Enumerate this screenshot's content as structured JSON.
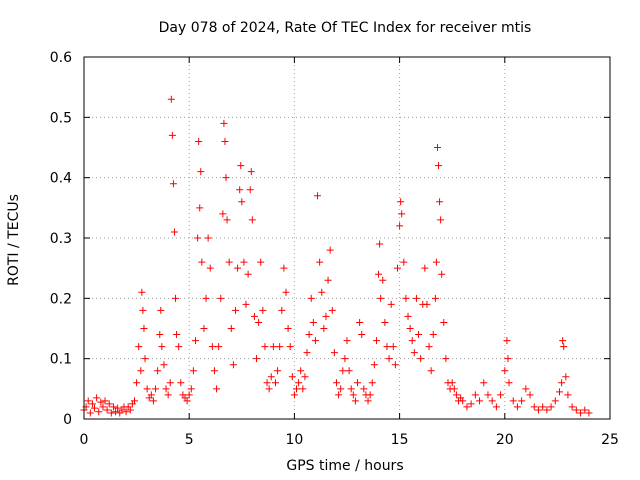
{
  "chart_data": {
    "type": "scatter",
    "title": "Day 078 of 2024, Rate Of TEC Index for receiver mtis",
    "xlabel": "GPS time / hours",
    "ylabel": "ROTI / TECUs",
    "xlim": [
      0,
      25
    ],
    "ylim": [
      0,
      0.6
    ],
    "xticks": [
      0,
      5,
      10,
      15,
      20,
      25
    ],
    "xtick_labels": [
      "0",
      "5",
      "10",
      "15",
      "20",
      "25"
    ],
    "yticks": [
      0,
      0.1,
      0.2,
      0.3,
      0.4,
      0.5,
      0.6
    ],
    "ytick_labels": [
      "0",
      "0.1",
      "0.2",
      "0.3",
      "0.4",
      "0.5",
      "0.6"
    ],
    "grid": true,
    "marker": "+",
    "color": "#ff0000",
    "series": [
      {
        "name": "ROTI",
        "points": [
          [
            0.0,
            0.015
          ],
          [
            0.1,
            0.02
          ],
          [
            0.2,
            0.03
          ],
          [
            0.3,
            0.01
          ],
          [
            0.4,
            0.025
          ],
          [
            0.5,
            0.018
          ],
          [
            0.6,
            0.035
          ],
          [
            0.7,
            0.012
          ],
          [
            0.8,
            0.028
          ],
          [
            0.9,
            0.02
          ],
          [
            1.0,
            0.03
          ],
          [
            1.1,
            0.015
          ],
          [
            1.2,
            0.025
          ],
          [
            1.3,
            0.01
          ],
          [
            1.4,
            0.02
          ],
          [
            1.5,
            0.012
          ],
          [
            1.6,
            0.018
          ],
          [
            1.7,
            0.01
          ],
          [
            1.8,
            0.015
          ],
          [
            1.9,
            0.02
          ],
          [
            2.0,
            0.012
          ],
          [
            2.1,
            0.02
          ],
          [
            2.2,
            0.015
          ],
          [
            2.3,
            0.025
          ],
          [
            2.4,
            0.03
          ],
          [
            2.5,
            0.06
          ],
          [
            2.6,
            0.12
          ],
          [
            2.7,
            0.08
          ],
          [
            2.75,
            0.21
          ],
          [
            2.8,
            0.18
          ],
          [
            2.85,
            0.15
          ],
          [
            2.9,
            0.1
          ],
          [
            3.0,
            0.05
          ],
          [
            3.1,
            0.035
          ],
          [
            3.2,
            0.04
          ],
          [
            3.3,
            0.03
          ],
          [
            3.4,
            0.05
          ],
          [
            3.5,
            0.08
          ],
          [
            3.6,
            0.14
          ],
          [
            3.65,
            0.18
          ],
          [
            3.7,
            0.12
          ],
          [
            3.8,
            0.09
          ],
          [
            3.9,
            0.05
          ],
          [
            4.0,
            0.04
          ],
          [
            4.1,
            0.06
          ],
          [
            4.15,
            0.53
          ],
          [
            4.2,
            0.47
          ],
          [
            4.25,
            0.39
          ],
          [
            4.3,
            0.31
          ],
          [
            4.35,
            0.2
          ],
          [
            4.4,
            0.14
          ],
          [
            4.5,
            0.12
          ],
          [
            4.6,
            0.06
          ],
          [
            4.7,
            0.04
          ],
          [
            4.8,
            0.035
          ],
          [
            4.9,
            0.03
          ],
          [
            5.0,
            0.04
          ],
          [
            5.1,
            0.05
          ],
          [
            5.2,
            0.08
          ],
          [
            5.3,
            0.13
          ],
          [
            5.4,
            0.3
          ],
          [
            5.45,
            0.46
          ],
          [
            5.5,
            0.35
          ],
          [
            5.55,
            0.41
          ],
          [
            5.6,
            0.26
          ],
          [
            5.7,
            0.15
          ],
          [
            5.8,
            0.2
          ],
          [
            5.9,
            0.3
          ],
          [
            6.0,
            0.25
          ],
          [
            6.1,
            0.12
          ],
          [
            6.2,
            0.08
          ],
          [
            6.3,
            0.05
          ],
          [
            6.4,
            0.12
          ],
          [
            6.5,
            0.2
          ],
          [
            6.6,
            0.34
          ],
          [
            6.65,
            0.49
          ],
          [
            6.7,
            0.46
          ],
          [
            6.75,
            0.4
          ],
          [
            6.8,
            0.33
          ],
          [
            6.9,
            0.26
          ],
          [
            7.0,
            0.15
          ],
          [
            7.1,
            0.09
          ],
          [
            7.2,
            0.18
          ],
          [
            7.3,
            0.25
          ],
          [
            7.4,
            0.38
          ],
          [
            7.45,
            0.42
          ],
          [
            7.5,
            0.36
          ],
          [
            7.6,
            0.26
          ],
          [
            7.7,
            0.19
          ],
          [
            7.8,
            0.24
          ],
          [
            7.9,
            0.38
          ],
          [
            7.95,
            0.41
          ],
          [
            8.0,
            0.33
          ],
          [
            8.1,
            0.17
          ],
          [
            8.2,
            0.1
          ],
          [
            8.3,
            0.16
          ],
          [
            8.4,
            0.26
          ],
          [
            8.5,
            0.18
          ],
          [
            8.6,
            0.12
          ],
          [
            8.7,
            0.06
          ],
          [
            8.8,
            0.05
          ],
          [
            8.9,
            0.07
          ],
          [
            9.0,
            0.12
          ],
          [
            9.1,
            0.06
          ],
          [
            9.2,
            0.08
          ],
          [
            9.3,
            0.12
          ],
          [
            9.4,
            0.18
          ],
          [
            9.5,
            0.25
          ],
          [
            9.6,
            0.21
          ],
          [
            9.7,
            0.15
          ],
          [
            9.8,
            0.12
          ],
          [
            9.9,
            0.07
          ],
          [
            10.0,
            0.04
          ],
          [
            10.1,
            0.05
          ],
          [
            10.2,
            0.06
          ],
          [
            10.3,
            0.08
          ],
          [
            10.4,
            0.05
          ],
          [
            10.5,
            0.07
          ],
          [
            10.6,
            0.11
          ],
          [
            10.7,
            0.14
          ],
          [
            10.8,
            0.2
          ],
          [
            10.9,
            0.16
          ],
          [
            11.0,
            0.13
          ],
          [
            11.1,
            0.37
          ],
          [
            11.2,
            0.26
          ],
          [
            11.3,
            0.21
          ],
          [
            11.4,
            0.15
          ],
          [
            11.5,
            0.17
          ],
          [
            11.6,
            0.23
          ],
          [
            11.7,
            0.28
          ],
          [
            11.8,
            0.18
          ],
          [
            11.9,
            0.11
          ],
          [
            12.0,
            0.06
          ],
          [
            12.1,
            0.04
          ],
          [
            12.2,
            0.05
          ],
          [
            12.3,
            0.08
          ],
          [
            12.4,
            0.1
          ],
          [
            12.5,
            0.13
          ],
          [
            12.6,
            0.08
          ],
          [
            12.7,
            0.05
          ],
          [
            12.8,
            0.04
          ],
          [
            12.9,
            0.03
          ],
          [
            13.0,
            0.06
          ],
          [
            13.1,
            0.16
          ],
          [
            13.2,
            0.14
          ],
          [
            13.3,
            0.05
          ],
          [
            13.4,
            0.04
          ],
          [
            13.5,
            0.03
          ],
          [
            13.6,
            0.04
          ],
          [
            13.7,
            0.06
          ],
          [
            13.8,
            0.09
          ],
          [
            13.9,
            0.13
          ],
          [
            14.0,
            0.24
          ],
          [
            14.05,
            0.29
          ],
          [
            14.1,
            0.2
          ],
          [
            14.2,
            0.23
          ],
          [
            14.3,
            0.16
          ],
          [
            14.4,
            0.12
          ],
          [
            14.5,
            0.1
          ],
          [
            14.6,
            0.19
          ],
          [
            14.7,
            0.12
          ],
          [
            14.8,
            0.09
          ],
          [
            14.9,
            0.25
          ],
          [
            15.0,
            0.32
          ],
          [
            15.05,
            0.36
          ],
          [
            15.1,
            0.34
          ],
          [
            15.2,
            0.26
          ],
          [
            15.3,
            0.2
          ],
          [
            15.4,
            0.17
          ],
          [
            15.5,
            0.15
          ],
          [
            15.6,
            0.13
          ],
          [
            15.7,
            0.11
          ],
          [
            15.8,
            0.2
          ],
          [
            15.9,
            0.14
          ],
          [
            16.0,
            0.1
          ],
          [
            16.1,
            0.19
          ],
          [
            16.2,
            0.25
          ],
          [
            16.3,
            0.19
          ],
          [
            16.4,
            0.12
          ],
          [
            16.5,
            0.08
          ],
          [
            16.6,
            0.14
          ],
          [
            16.7,
            0.2
          ],
          [
            16.75,
            0.26
          ],
          [
            16.8,
            0.45
          ],
          [
            16.85,
            0.42
          ],
          [
            16.9,
            0.36
          ],
          [
            16.95,
            0.33
          ],
          [
            17.0,
            0.24
          ],
          [
            17.1,
            0.16
          ],
          [
            17.2,
            0.1
          ],
          [
            17.3,
            0.06
          ],
          [
            17.4,
            0.05
          ],
          [
            17.5,
            0.06
          ],
          [
            17.6,
            0.05
          ],
          [
            17.7,
            0.04
          ],
          [
            17.8,
            0.03
          ],
          [
            17.9,
            0.035
          ],
          [
            18.0,
            0.03
          ],
          [
            18.2,
            0.02
          ],
          [
            18.4,
            0.025
          ],
          [
            18.6,
            0.04
          ],
          [
            18.8,
            0.03
          ],
          [
            19.0,
            0.06
          ],
          [
            19.2,
            0.04
          ],
          [
            19.4,
            0.03
          ],
          [
            19.6,
            0.02
          ],
          [
            19.8,
            0.04
          ],
          [
            20.0,
            0.08
          ],
          [
            20.1,
            0.13
          ],
          [
            20.15,
            0.1
          ],
          [
            20.2,
            0.06
          ],
          [
            20.4,
            0.03
          ],
          [
            20.6,
            0.02
          ],
          [
            20.8,
            0.03
          ],
          [
            21.0,
            0.05
          ],
          [
            21.2,
            0.04
          ],
          [
            21.4,
            0.02
          ],
          [
            21.6,
            0.015
          ],
          [
            21.8,
            0.02
          ],
          [
            22.0,
            0.015
          ],
          [
            22.2,
            0.02
          ],
          [
            22.4,
            0.03
          ],
          [
            22.6,
            0.045
          ],
          [
            22.7,
            0.06
          ],
          [
            22.75,
            0.13
          ],
          [
            22.8,
            0.12
          ],
          [
            22.9,
            0.07
          ],
          [
            23.0,
            0.04
          ],
          [
            23.2,
            0.02
          ],
          [
            23.4,
            0.015
          ],
          [
            23.6,
            0.01
          ],
          [
            23.8,
            0.015
          ],
          [
            24.0,
            0.01
          ]
        ]
      }
    ]
  }
}
